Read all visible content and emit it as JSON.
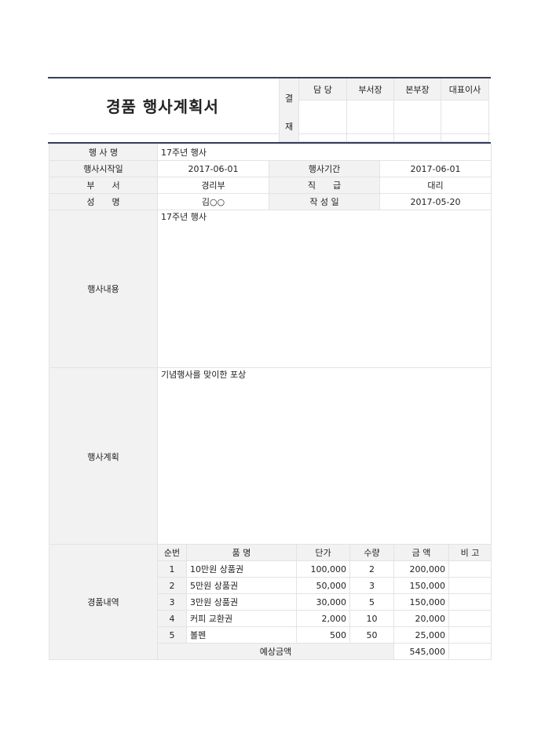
{
  "title": "경품 행사계획서",
  "approval": {
    "label_top": "결",
    "label_bottom": "재",
    "roles": [
      "담 당",
      "부서장",
      "본부장",
      "대표이사"
    ]
  },
  "info": {
    "event_name_label": "행 사 명",
    "event_name": "17주년 행사",
    "start_label": "행사시작일",
    "start": "2017-06-01",
    "period_label": "행사기간",
    "period": "2017-06-01",
    "dept_label": "부　　서",
    "dept": "경리부",
    "rank_label": "직　　급",
    "rank": "대리",
    "name_label": "성　　명",
    "name": "김○○",
    "written_label": "작 성 일",
    "written": "2017-05-20",
    "content_label": "행사내용",
    "content": "17주년 행사",
    "plan_label": "행사계획",
    "plan": "기념행사를 맞이한 포상"
  },
  "prizes": {
    "label": "경품내역",
    "headers": [
      "순번",
      "품 명",
      "단가",
      "수량",
      "금 액",
      "비 고"
    ],
    "rows": [
      [
        "1",
        "10만원 상품권",
        "100,000",
        "2",
        "200,000",
        ""
      ],
      [
        "2",
        "5만원 상품권",
        "50,000",
        "3",
        "150,000",
        ""
      ],
      [
        "3",
        "3만원 상품권",
        "30,000",
        "5",
        "150,000",
        ""
      ],
      [
        "4",
        "커피 교환권",
        "2,000",
        "10",
        "20,000",
        ""
      ],
      [
        "5",
        "볼펜",
        "500",
        "50",
        "25,000",
        ""
      ]
    ],
    "total_label": "예상금액",
    "total": "545,000"
  },
  "colors": {
    "rule": "#3a3f5c",
    "label_bg": "#f2f2f2"
  }
}
